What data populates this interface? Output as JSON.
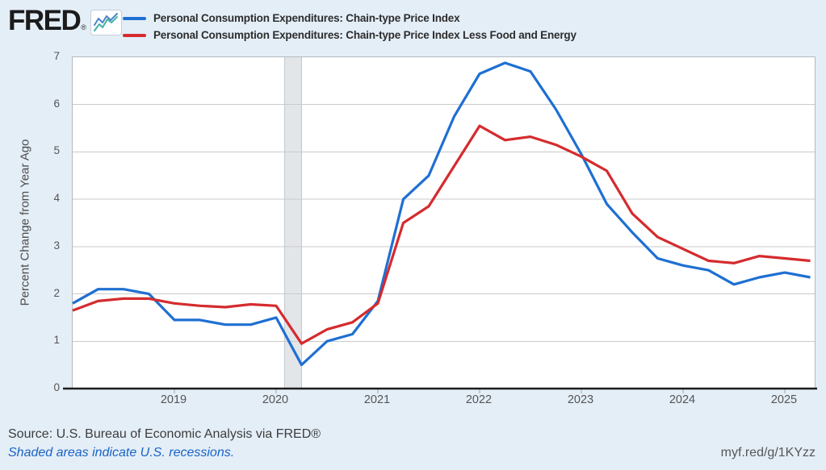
{
  "page": {
    "background": "#e4eef7"
  },
  "header": {
    "logo_text": "FRED",
    "logo_reg_mark": "®"
  },
  "chart_data": {
    "type": "line",
    "frequency": "quarterly",
    "ylabel": "Percent Change from Year Ago",
    "ylim": [
      0,
      7
    ],
    "yticks": [
      0,
      1,
      2,
      3,
      4,
      5,
      6,
      7
    ],
    "xlim": [
      2018.0,
      2025.294
    ],
    "xticks": [
      2019,
      2020,
      2021,
      2022,
      2023,
      2024,
      2025
    ],
    "grid": "horizontal-only",
    "legend_position": "top",
    "recession_band": {
      "start": 2020.083,
      "end": 2020.25,
      "color": "#e3e6e9"
    },
    "x": [
      2018.0,
      2018.25,
      2018.5,
      2018.75,
      2019.0,
      2019.25,
      2019.5,
      2019.75,
      2020.0,
      2020.25,
      2020.5,
      2020.75,
      2021.0,
      2021.25,
      2021.5,
      2021.75,
      2022.0,
      2022.25,
      2022.5,
      2022.75,
      2023.0,
      2023.25,
      2023.5,
      2023.75,
      2024.0,
      2024.25,
      2024.5,
      2024.75,
      2025.0,
      2025.25
    ],
    "series": [
      {
        "name": "Personal Consumption Expenditures: Chain-type Price Index",
        "color": "#1e6fd2",
        "values": [
          1.8,
          2.1,
          2.1,
          2.0,
          1.45,
          1.45,
          1.35,
          1.35,
          1.5,
          0.5,
          1.0,
          1.15,
          1.85,
          4.0,
          4.5,
          5.75,
          6.65,
          6.88,
          6.7,
          5.9,
          4.95,
          3.9,
          3.3,
          2.75,
          2.6,
          2.5,
          2.2,
          2.35,
          2.45,
          2.35
        ]
      },
      {
        "name": "Personal Consumption Expenditures: Chain-type Price Index Less Food and Energy",
        "color": "#d52b2e",
        "values": [
          1.65,
          1.85,
          1.9,
          1.9,
          1.8,
          1.75,
          1.72,
          1.78,
          1.75,
          0.95,
          1.25,
          1.4,
          1.8,
          3.5,
          3.85,
          4.7,
          5.55,
          5.25,
          5.32,
          5.15,
          4.9,
          4.6,
          3.7,
          3.2,
          2.95,
          2.7,
          2.65,
          2.8,
          2.75,
          2.7
        ]
      }
    ]
  },
  "footer": {
    "source": "Source: U.S. Bureau of Economic Analysis via FRED®",
    "recession_note": "Shaded areas indicate U.S. recessions.",
    "short_url": "myf.red/g/1KYzz"
  }
}
